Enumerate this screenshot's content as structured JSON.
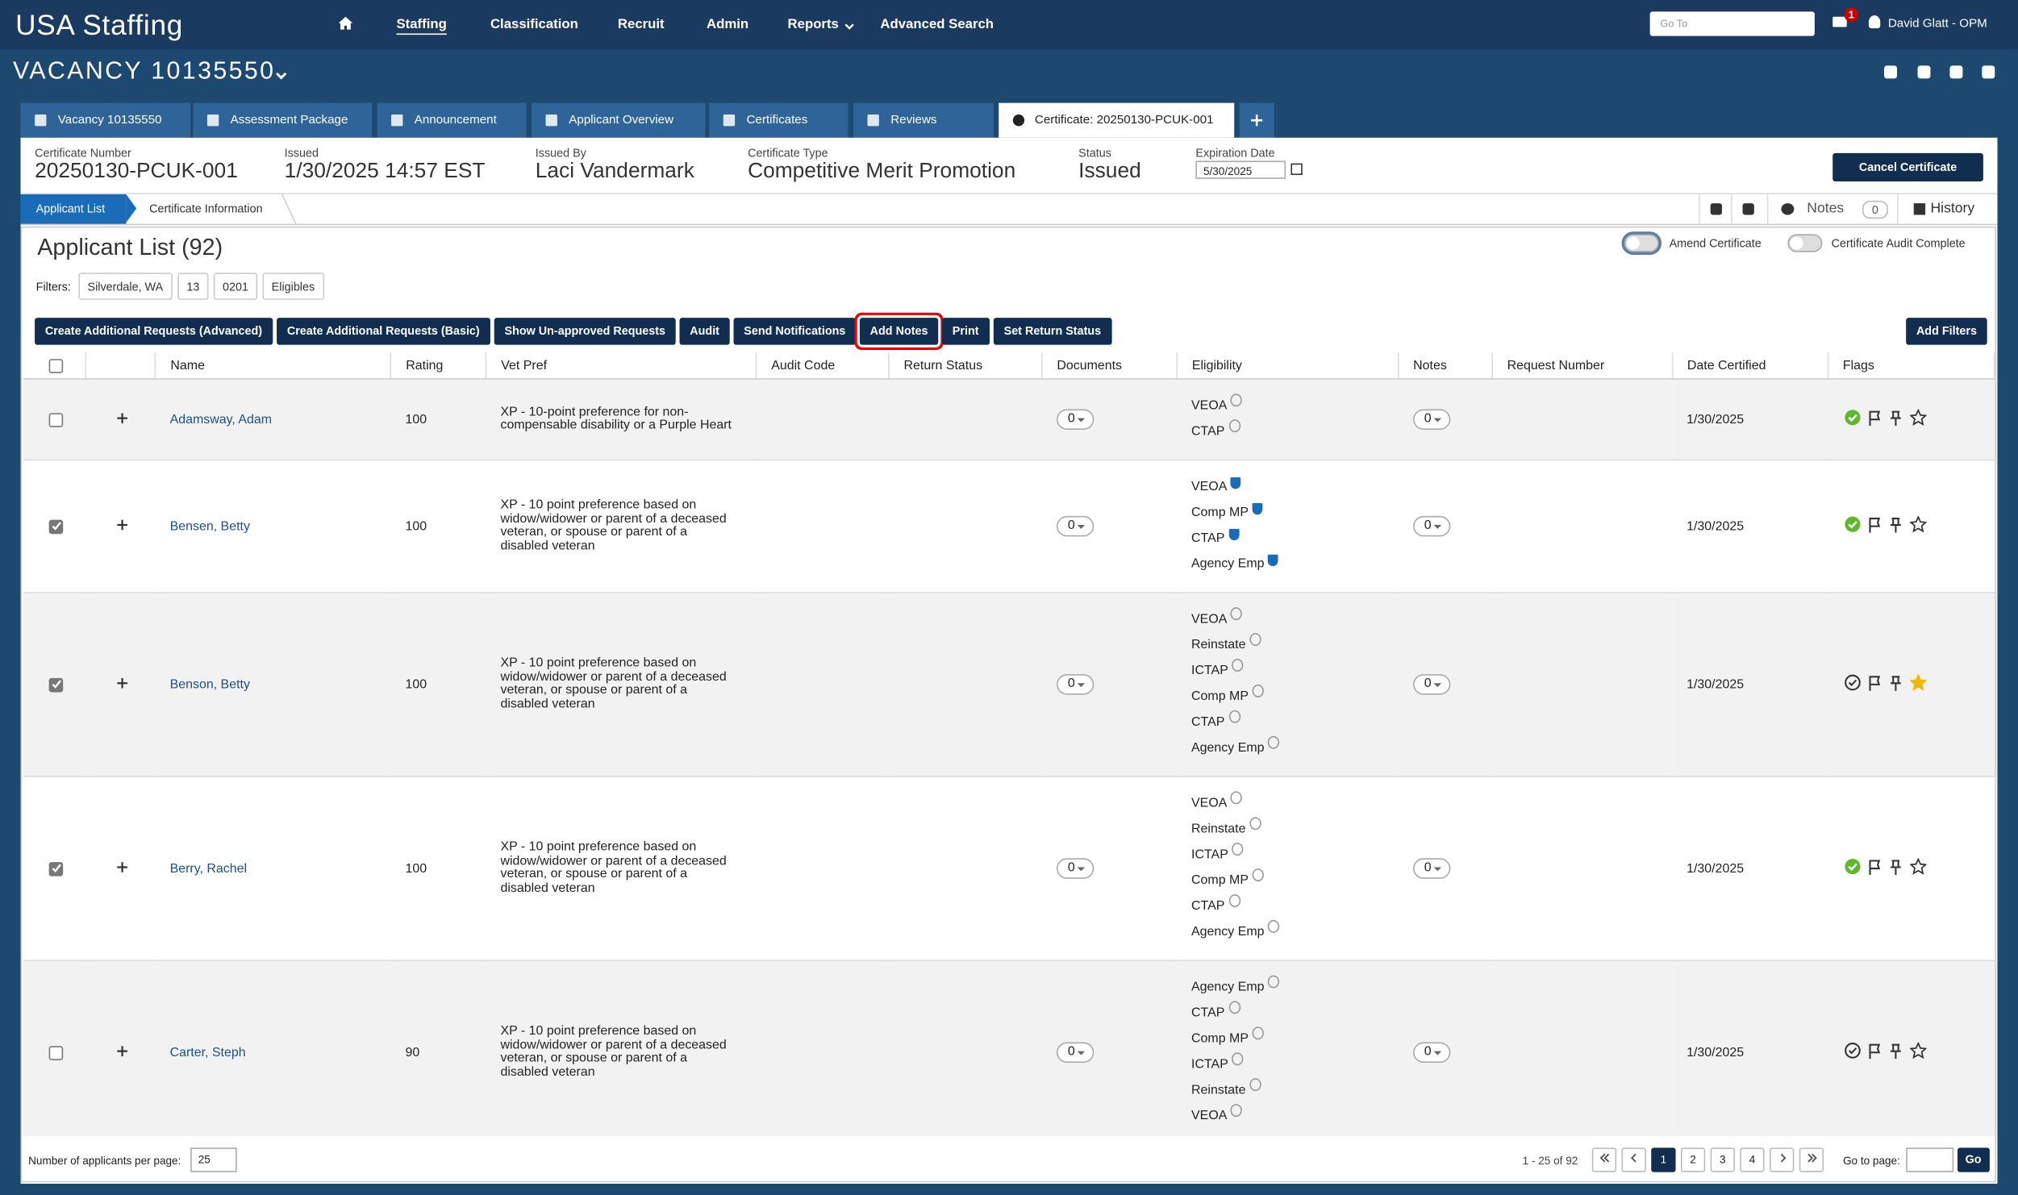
{
  "header": {
    "logo": "USA Staffing",
    "nav": [
      "Staffing",
      "Classification",
      "Recruit",
      "Admin",
      "Reports",
      "Advanced Search"
    ],
    "search_placeholder": "Go To",
    "mail_count": "1",
    "user": "David Glatt - OPM"
  },
  "vacancy": {
    "title": "VACANCY 10135550"
  },
  "tabs": [
    "Vacancy 10135550",
    "Assessment Package",
    "Announcement",
    "Applicant Overview",
    "Certificates",
    "Reviews",
    "Certificate: 20250130-PCUK-001"
  ],
  "certificate": {
    "fields": [
      {
        "label": "Certificate Number",
        "value": "20250130-PCUK-001"
      },
      {
        "label": "Issued",
        "value": "1/30/2025 14:57 EST"
      },
      {
        "label": "Issued By",
        "value": "Laci Vandermark"
      },
      {
        "label": "Certificate Type",
        "value": "Competitive Merit Promotion"
      },
      {
        "label": "Status",
        "value": "Issued"
      }
    ],
    "expiration_label": "Expiration Date",
    "expiration_value": "5/30/2025",
    "cancel_button": "Cancel Certificate"
  },
  "subtabs": [
    "Applicant List",
    "Certificate Information"
  ],
  "toolbar": {
    "notes_label": "Notes",
    "notes_count": "0",
    "history": "History"
  },
  "applicant_list": {
    "title": "Applicant List (92)",
    "amend": "Amend Certificate",
    "audit_complete": "Certificate Audit Complete",
    "filters_label": "Filters:",
    "filters": [
      "Silverdale, WA",
      "13",
      "0201",
      "Eligibles"
    ],
    "actions": [
      {
        "label": "Create Additional Requests (Advanced)",
        "highlighted": false
      },
      {
        "label": "Create Additional Requests (Basic)",
        "highlighted": false
      },
      {
        "label": "Show Un-approved Requests",
        "highlighted": false
      },
      {
        "label": "Audit",
        "highlighted": false
      },
      {
        "label": "Send Notifications",
        "highlighted": false
      },
      {
        "label": "Add Notes",
        "highlighted": true
      },
      {
        "label": "Print",
        "highlighted": false
      },
      {
        "label": "Set Return Status",
        "highlighted": false
      }
    ],
    "add_filters": "Add Filters"
  },
  "table": {
    "columns": [
      "Name",
      "Rating",
      "Vet Pref",
      "Audit Code",
      "Return Status",
      "Documents",
      "Eligibility",
      "Notes",
      "Request Number",
      "Date Certified",
      "Flags"
    ],
    "rows": [
      {
        "checked": false,
        "name": "Adamsway, Adam",
        "rating": 100,
        "vet_pref": "XP - 10-point preference for non-compensable disability or a Purple Heart",
        "documents": 0,
        "eligibility": [
          "VEOA",
          "CTAP"
        ],
        "eligibility_verified": false,
        "notes": 0,
        "date_certified": "1/30/2025",
        "eligible_check": true,
        "starred": false
      },
      {
        "checked": true,
        "name": "Bensen, Betty",
        "rating": 100,
        "vet_pref": "XP - 10 point preference based on widow/widower or parent of a deceased veteran, or spouse or parent of a disabled veteran",
        "documents": 0,
        "eligibility": [
          "VEOA",
          "Comp MP",
          "CTAP",
          "Agency Emp"
        ],
        "eligibility_verified": true,
        "notes": 0,
        "date_certified": "1/30/2025",
        "eligible_check": true,
        "starred": false
      },
      {
        "checked": true,
        "name": "Benson, Betty",
        "rating": 100,
        "vet_pref": "XP - 10 point preference based on widow/widower or parent of a deceased veteran, or spouse or parent of a disabled veteran",
        "documents": 0,
        "eligibility": [
          "VEOA",
          "Reinstate",
          "ICTAP",
          "Comp MP",
          "CTAP",
          "Agency Emp"
        ],
        "eligibility_verified": false,
        "notes": 0,
        "date_certified": "1/30/2025",
        "eligible_check": false,
        "starred": true
      },
      {
        "checked": true,
        "name": "Berry, Rachel",
        "rating": 100,
        "vet_pref": "XP - 10 point preference based on widow/widower or parent of a deceased veteran, or spouse or parent of a disabled veteran",
        "documents": 0,
        "eligibility": [
          "VEOA",
          "Reinstate",
          "ICTAP",
          "Comp MP",
          "CTAP",
          "Agency Emp"
        ],
        "eligibility_verified": false,
        "notes": 0,
        "date_certified": "1/30/2025",
        "eligible_check": true,
        "starred": false
      },
      {
        "checked": false,
        "name": "Carter, Steph",
        "rating": 90,
        "vet_pref": "XP - 10 point preference based on widow/widower or parent of a deceased veteran, or spouse or parent of a disabled veteran",
        "documents": 0,
        "eligibility": [
          "Agency Emp",
          "CTAP",
          "Comp MP",
          "ICTAP",
          "Reinstate",
          "VEOA"
        ],
        "eligibility_verified": false,
        "notes": 0,
        "date_certified": "1/30/2025",
        "eligible_check": false,
        "starred": false
      }
    ]
  },
  "pagination": {
    "per_page_label": "Number of applicants per page:",
    "per_page": "25",
    "range": "1 - 25 of 92",
    "pages": [
      "1",
      "2",
      "3",
      "4"
    ],
    "goto_label": "Go to page:",
    "go": "Go"
  }
}
